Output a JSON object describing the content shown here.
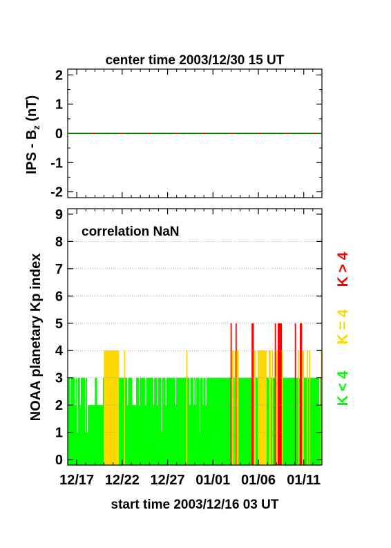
{
  "top_title": "center time 2003/12/30 15 UT",
  "bottom_title": "start time 2003/12/16 03 UT",
  "top_ylabel_main": "IPS - B",
  "top_ylabel_sub": "z",
  "top_ylabel_unit": " (nT)",
  "bottom_ylabel": "NOAA planetary Kp index",
  "correlation": "correlation NaN",
  "legend": [
    {
      "text": "K < 4",
      "color": "#00ff00"
    },
    {
      "text": "K = 4",
      "color": "#ffd700"
    },
    {
      "text": "K > 4",
      "color": "#ff0000"
    }
  ],
  "x_ticks": [
    "12/17",
    "12/22",
    "12/27",
    "01/01",
    "01/06",
    "01/11"
  ],
  "top_y_ticks": [
    "2",
    "1",
    "0",
    "-1",
    "-2"
  ],
  "bottom_y_ticks": [
    "0",
    "1",
    "2",
    "3",
    "4",
    "5",
    "6",
    "7",
    "8",
    "9"
  ],
  "chart_data": [
    {
      "type": "line",
      "title": "center time 2003/12/30 15 UT",
      "ylabel": "IPS - Bz (nT)",
      "ylim": [
        -2.2,
        2.2
      ],
      "x_range_days_from_start": [
        0,
        28
      ],
      "series": [
        {
          "color": "#008000",
          "values": [
            0,
            0
          ]
        },
        {
          "color": "#ff0000",
          "values": [
            0,
            0
          ]
        }
      ]
    },
    {
      "type": "bar",
      "xlabel": "start time 2003/12/16 03 UT",
      "ylabel": "NOAA planetary Kp index",
      "ylim": [
        -0.2,
        9.2
      ],
      "x_range_days_from_start": [
        0,
        28
      ],
      "bins_per_day": 8,
      "thresholds": {
        "green_below": 4,
        "yellow_equal": 4,
        "red_above": 4
      },
      "colors": {
        "low": "#00ff00",
        "mid": "#ffd700",
        "high": "#ff0000"
      },
      "kp_values": [
        3,
        3,
        2,
        3,
        3,
        3,
        3,
        2,
        3,
        1,
        3,
        3,
        2,
        3,
        3,
        3,
        3,
        1,
        3,
        1,
        2,
        2,
        2,
        2,
        2,
        2,
        2,
        3,
        3,
        2,
        2,
        2,
        2,
        2,
        2,
        3,
        4,
        4,
        4,
        4,
        4,
        4,
        4,
        4,
        4,
        4,
        4,
        4,
        4,
        4,
        4,
        3,
        3,
        3,
        3,
        3,
        4,
        3,
        3,
        2,
        3,
        3,
        3,
        3,
        2,
        2,
        2,
        2,
        3,
        3,
        3,
        2,
        3,
        3,
        3,
        3,
        3,
        2,
        3,
        3,
        3,
        3,
        3,
        3,
        3,
        2,
        3,
        3,
        3,
        2,
        3,
        3,
        3,
        1,
        3,
        3,
        3,
        2,
        3,
        3,
        3,
        3,
        3,
        3,
        3,
        3,
        3,
        2,
        3,
        3,
        3,
        3,
        3,
        3,
        3,
        3,
        3,
        3,
        4,
        3,
        3,
        2,
        3,
        3,
        3,
        2,
        3,
        2,
        3,
        3,
        3,
        1,
        3,
        3,
        2,
        3,
        3,
        2,
        3,
        3,
        3,
        3,
        3,
        3,
        3,
        3,
        3,
        3,
        3,
        3,
        3,
        3,
        3,
        3,
        3,
        3,
        3,
        3,
        3,
        3,
        3,
        3,
        5,
        4,
        4,
        3,
        4,
        5,
        4,
        4,
        3,
        3,
        3,
        3,
        3,
        3,
        3,
        3,
        3,
        3,
        3,
        3,
        3,
        5,
        5,
        4,
        4,
        3,
        3,
        4,
        4,
        4,
        4,
        4,
        4,
        4,
        4,
        4,
        3,
        3,
        4,
        4,
        3,
        4,
        3,
        3,
        5,
        4,
        4,
        5,
        5,
        5,
        5,
        4,
        3,
        3,
        3,
        3,
        3,
        3,
        3,
        3,
        3,
        3,
        3,
        3,
        5,
        3,
        3,
        4,
        3,
        5,
        5,
        4,
        4,
        3,
        3,
        3,
        4,
        3,
        4,
        3,
        3,
        3,
        3,
        3,
        3,
        3,
        3,
        3,
        2,
        3,
        4
      ]
    }
  ]
}
